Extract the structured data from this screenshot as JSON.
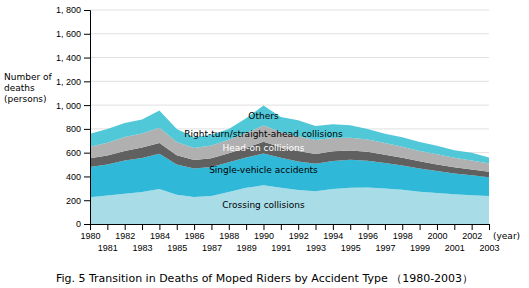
{
  "chart_data": {
    "type": "area",
    "stacked": true,
    "title": "Fig. 5  Transition in Deaths of Moped Riders by Accident Type （1980-2003）",
    "xlabel": "(year)",
    "ylabel": "Number of\ndeaths\n(persons)",
    "x": [
      1980,
      1981,
      1982,
      1983,
      1984,
      1985,
      1986,
      1987,
      1988,
      1989,
      1990,
      1991,
      1992,
      1993,
      1994,
      1995,
      1996,
      1997,
      1998,
      1999,
      2000,
      2001,
      2002,
      2003
    ],
    "series": [
      {
        "name": "Crossing collisions",
        "color": "#a8dde8",
        "values": [
          225,
          240,
          255,
          270,
          295,
          245,
          228,
          235,
          270,
          305,
          325,
          305,
          285,
          275,
          295,
          305,
          308,
          298,
          288,
          272,
          260,
          250,
          242,
          235
        ]
      },
      {
        "name": "Single-vehicle accidents",
        "color": "#30b8d8",
        "values": [
          255,
          260,
          280,
          285,
          295,
          255,
          238,
          245,
          250,
          255,
          268,
          252,
          240,
          232,
          235,
          235,
          225,
          215,
          205,
          195,
          185,
          175,
          168,
          158
        ]
      },
      {
        "name": "Head-on collisions",
        "color": "#606060",
        "values": [
          72,
          76,
          78,
          88,
          92,
          78,
          72,
          73,
          76,
          82,
          98,
          88,
          88,
          82,
          82,
          78,
          75,
          70,
          65,
          60,
          56,
          53,
          48,
          46
        ]
      },
      {
        "name": "Right-turn/straight-ahead collisions",
        "color": "#b0b0b0",
        "values": [
          98,
          108,
          118,
          118,
          128,
          112,
          102,
          108,
          112,
          122,
          138,
          128,
          122,
          118,
          112,
          108,
          102,
          98,
          92,
          88,
          85,
          80,
          76,
          70
        ]
      },
      {
        "name": "Others",
        "color": "#50c8d8",
        "values": [
          110,
          116,
          119,
          119,
          145,
          110,
          90,
          89,
          92,
          126,
          168,
          127,
          138,
          118,
          116,
          104,
          90,
          79,
          80,
          75,
          72,
          62,
          66,
          51
        ]
      }
    ],
    "xlim": [
      1980,
      2003
    ],
    "xticks": [
      1980,
      1981,
      1982,
      1983,
      1984,
      1985,
      1986,
      1987,
      1988,
      1989,
      1990,
      1991,
      1992,
      1993,
      1994,
      1995,
      1996,
      1997,
      1998,
      1999,
      2000,
      2001,
      2002,
      2003
    ],
    "ylim": [
      0,
      1800
    ],
    "yticks": [
      0,
      200,
      400,
      600,
      800,
      {
        "value": 1000,
        "label": "1, 000"
      },
      {
        "value": 1200,
        "label": "1, 200"
      },
      {
        "value": 1400,
        "label": "1, 400"
      },
      {
        "value": 1600,
        "label": "1, 600"
      },
      {
        "value": 1800,
        "label": "1, 800"
      }
    ],
    "grid": true
  }
}
